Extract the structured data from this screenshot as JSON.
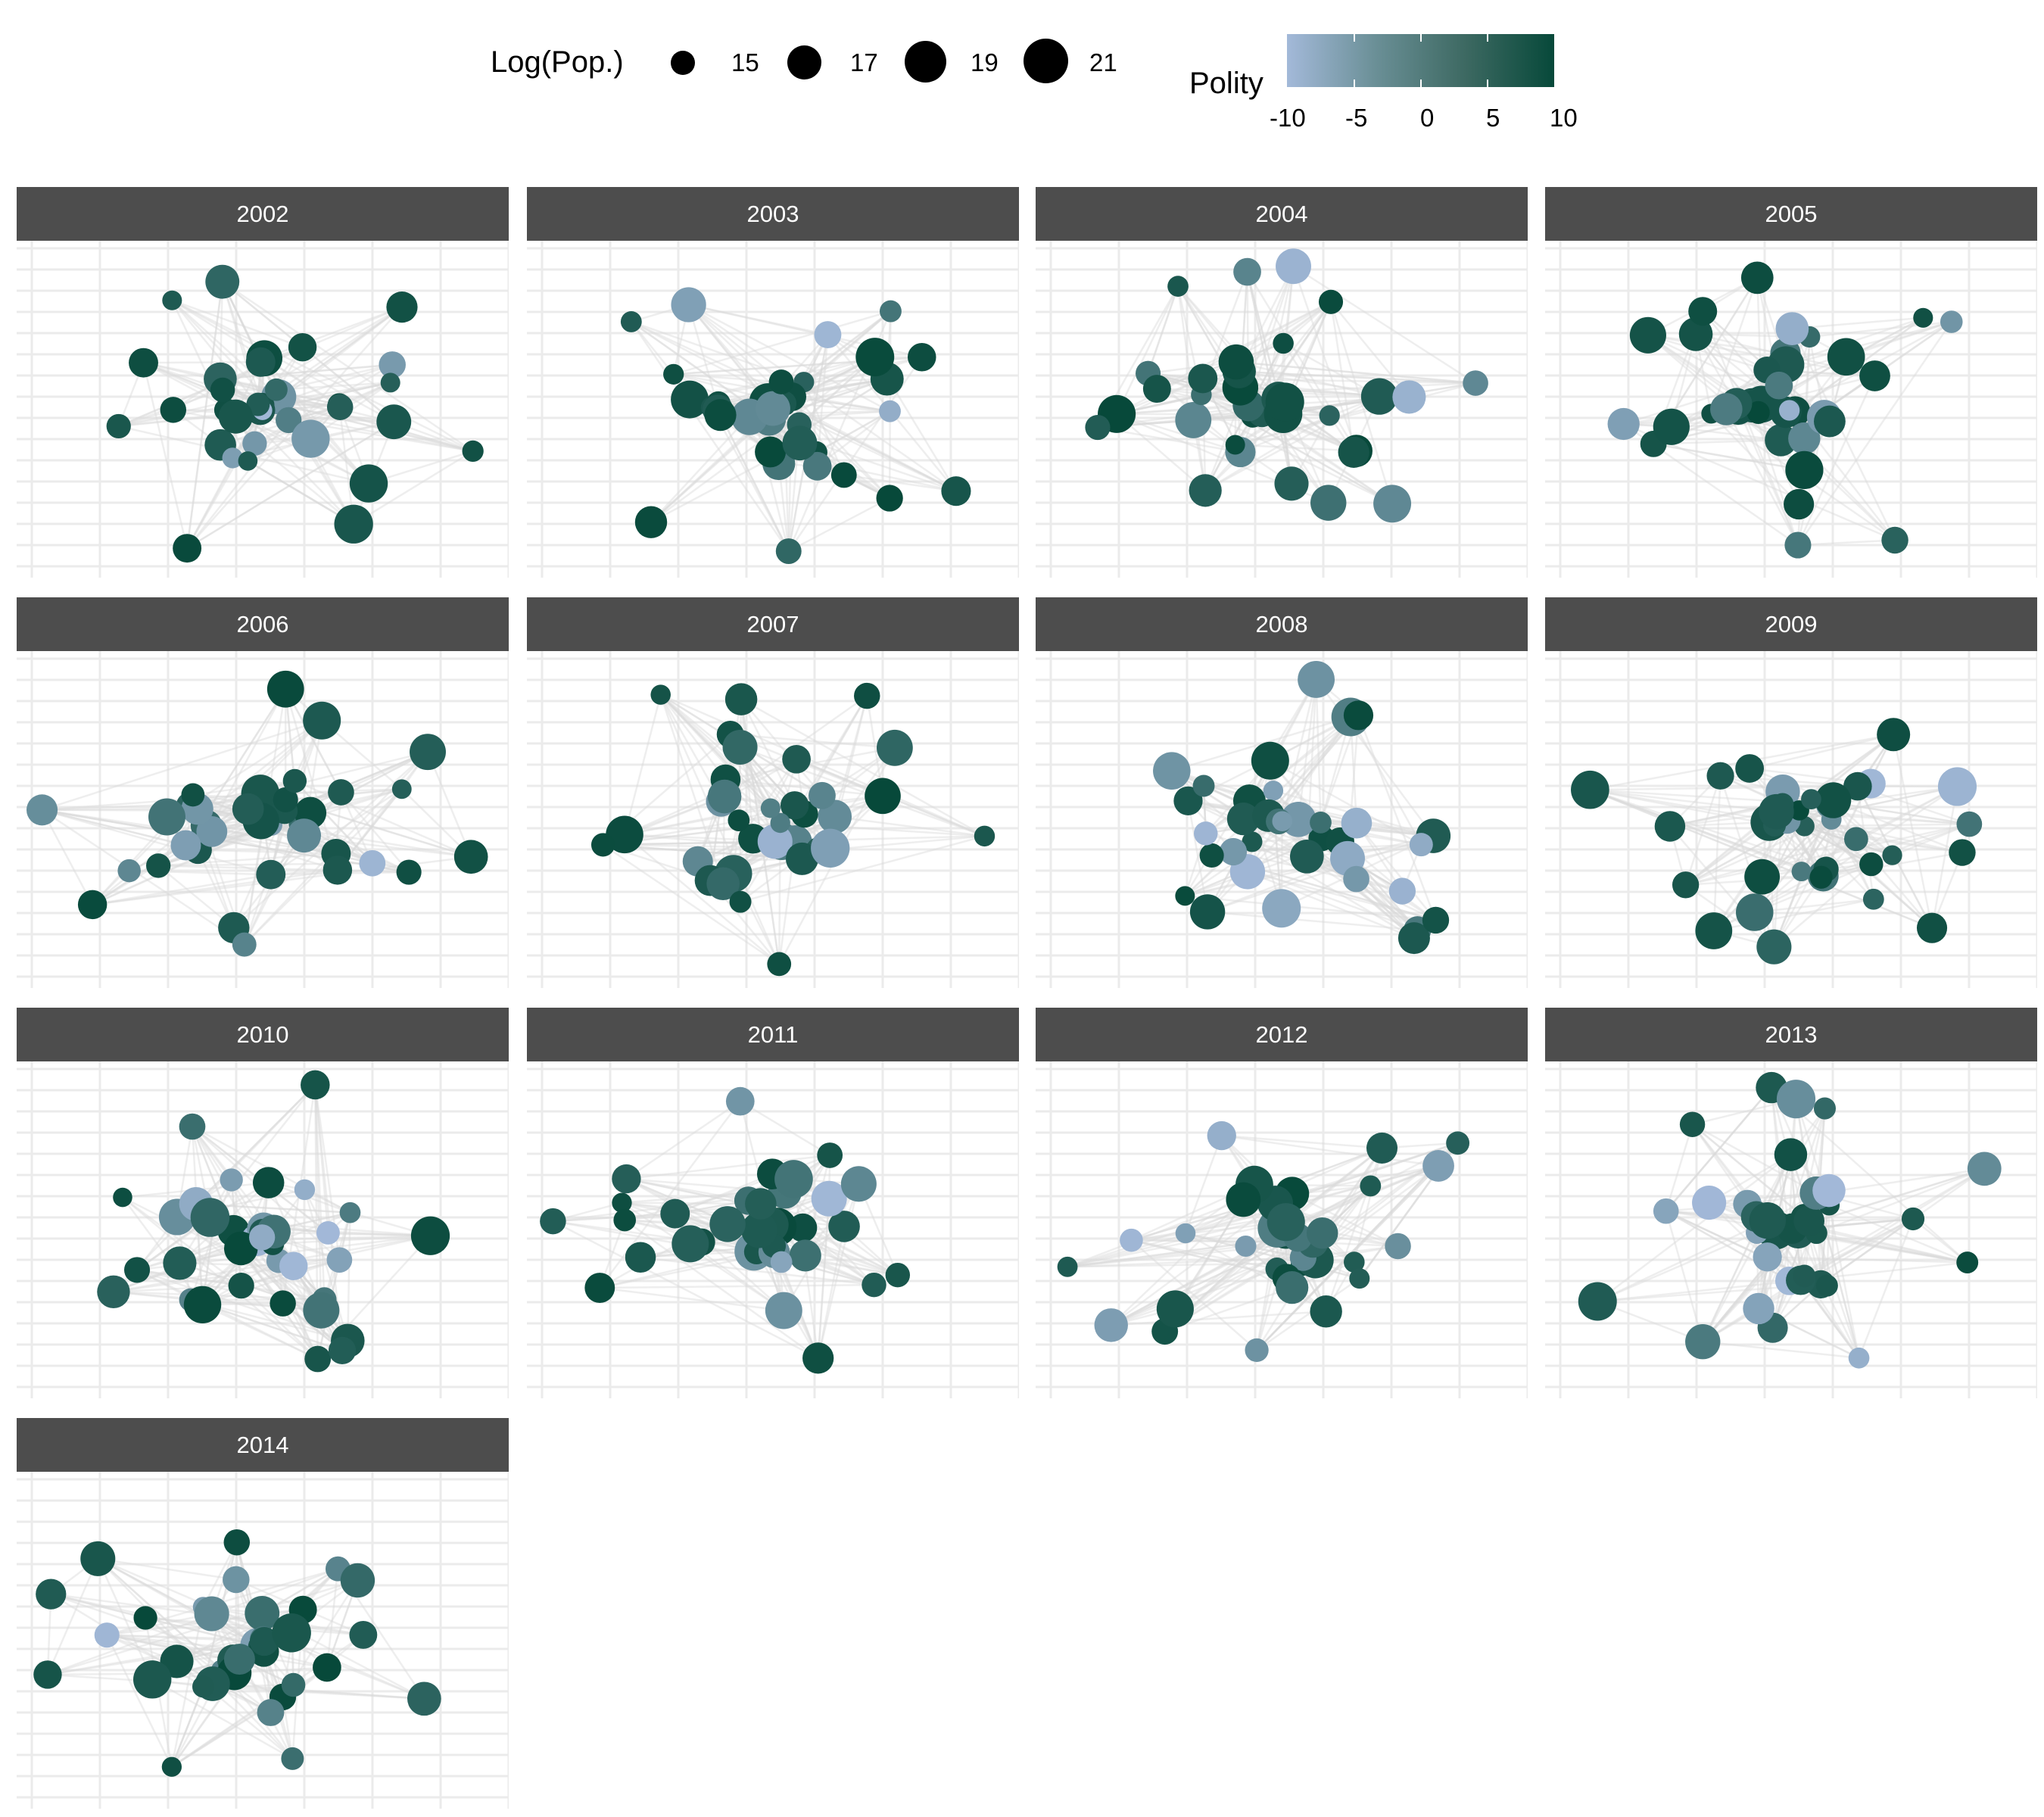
{
  "chart_data": {
    "type": "scatter",
    "subtype": "faceted network graph",
    "title": "",
    "xlabel": "",
    "ylabel": "",
    "grid": true,
    "legend": {
      "placement": "top",
      "size": {
        "title": "Log(Pop.)",
        "breaks": [
          "15",
          "17",
          "19",
          "21"
        ],
        "values": [
          15,
          17,
          19,
          21
        ]
      },
      "color": {
        "title": "Polity",
        "breaks": [
          "-10",
          "-5",
          "0",
          "5",
          "10"
        ],
        "range": [
          -10,
          10
        ],
        "low_color": "#a3b9d9",
        "high_color": "#07493a"
      }
    },
    "facets": [
      {
        "label": "2002",
        "n_nodes": 34
      },
      {
        "label": "2003",
        "n_nodes": 36
      },
      {
        "label": "2004",
        "n_nodes": 36
      },
      {
        "label": "2005",
        "n_nodes": 35
      },
      {
        "label": "2006",
        "n_nodes": 36
      },
      {
        "label": "2007",
        "n_nodes": 35
      },
      {
        "label": "2008",
        "n_nodes": 36
      },
      {
        "label": "2009",
        "n_nodes": 36
      },
      {
        "label": "2010",
        "n_nodes": 36
      },
      {
        "label": "2011",
        "n_nodes": 36
      },
      {
        "label": "2012",
        "n_nodes": 36
      },
      {
        "label": "2013",
        "n_nodes": 36
      },
      {
        "label": "2014",
        "n_nodes": 36
      }
    ],
    "edge_color": "#d9d9d9"
  }
}
